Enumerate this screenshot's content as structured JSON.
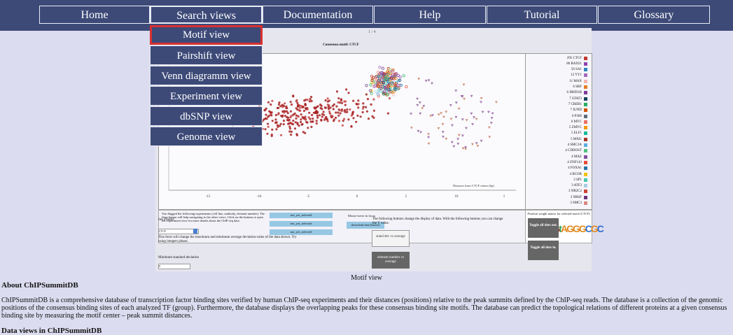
{
  "nav": {
    "items": [
      "Home",
      "Search views",
      "Documentation",
      "Help",
      "Tutorial",
      "Glossary"
    ],
    "active": "Search views"
  },
  "dropdown": {
    "items": [
      "Motif view",
      "Pairshift view",
      "Venn diagramm view",
      "Experiment view",
      "dbSNP view",
      "Genome view"
    ],
    "selected": "Motif view"
  },
  "screenshot": {
    "counter": "1 / 4",
    "chart_title": "Consensus motif: CTCF",
    "x_axis_label": "Distance from CTCF center (bp)",
    "x_ticks": [
      "-15",
      "-10",
      "-5",
      "0",
      "5",
      "10",
      "1"
    ],
    "legend": [
      {
        "label": "295 CTCF",
        "color": "#c0392b"
      },
      {
        "label": "86 RAD21",
        "color": "#8e44ad"
      },
      {
        "label": "56 SA1",
        "color": "#2e86c1"
      },
      {
        "label": "12 YY1",
        "color": "#a569bd"
      },
      {
        "label": "11 MAX",
        "color": "#f5b7b1"
      },
      {
        "label": "6 SRF",
        "color": "#e67e22"
      },
      {
        "label": "6 JMJD1B",
        "color": "#7d3c98"
      },
      {
        "label": "7 STAT3",
        "color": "#154360"
      },
      {
        "label": "7 CREB1",
        "color": "#27ae60"
      },
      {
        "label": "7 JUND",
        "color": "#d35400"
      },
      {
        "label": "6 P300",
        "color": "#5d6d7e"
      },
      {
        "label": "6 MYC",
        "color": "#ec7063"
      },
      {
        "label": "5 ZMYC",
        "color": "#f39c12"
      },
      {
        "label": "5 ELF1",
        "color": "#1abc9c"
      },
      {
        "label": "5 MXI1",
        "color": "#a93226"
      },
      {
        "label": "4 SMC3A",
        "color": "#5dade2"
      },
      {
        "label": "4 CDDOST",
        "color": "#52be80"
      },
      {
        "label": "4 MAZ",
        "color": "#884ea0"
      },
      {
        "label": "4 ZNF143",
        "color": "#e74c3c"
      },
      {
        "label": "4 FOXA1",
        "color": "#2874a6"
      },
      {
        "label": "4 BCOR",
        "color": "#f1c40f"
      },
      {
        "label": "3 SP1",
        "color": "#48c9b0"
      },
      {
        "label": "3 ATF3",
        "color": "#a9cce3"
      },
      {
        "label": "3 NR2C2",
        "color": "#cb4335"
      },
      {
        "label": "3 NRSF",
        "color": "#6c3483"
      },
      {
        "label": "3 SMC3",
        "color": "#d98880"
      }
    ],
    "info_text": "You flagged the following experiments (cell line, antibody, element number). The flags button will help navigating to the other views. Click on the buttons to open the experiment view for more details about the ChIP-seq data.",
    "not_selected_label": "not_yet_selected",
    "hover_text": "Mouse hover in focus",
    "download_label": "download data (boxes)",
    "pwm_title": "Position weight matrix for selected motif (CTCF)",
    "logo_text": "CCAGtAGGGCGC",
    "motif_label": "Set a motif:",
    "motif_select_value": "CTCF",
    "change_text": "This form will change the maximum and minimum average deviation-value of the data shown. Try using integers please.",
    "min_dev_label": "Minimum standard deviation",
    "min_dev_value": "0",
    "y_buttons_text": "The following buttons change the display of data. With the following buttons you can change the Y value.",
    "btn_stddev": "stand dev vs average",
    "btn_elemnum": "element number vs average",
    "btn_toggle_out": "Toggle all dots out.",
    "btn_toggle_in": "Toggle all dots in."
  },
  "caption": "Motif view",
  "about": {
    "title": "About ChIPSummitDB",
    "text": "ChIPSummitDB is a comprehensive database of transcription factor binding sites verified by human ChIP-seq experiments and their distances (positions) relative to the peak summits defined by the ChIP-seq reads. The database is a collection of the genomic positions of the consensus binding sites of each analyzed TF (group). Furthermore, the database displays the overlapping peaks for these consensus binding site motifs. The database can predict the topological relations of different proteins at a given consensus binding site by measuring the motif center – peak summit distances."
  },
  "dataviews": {
    "title": "Data views in ChIPSummitDB"
  }
}
